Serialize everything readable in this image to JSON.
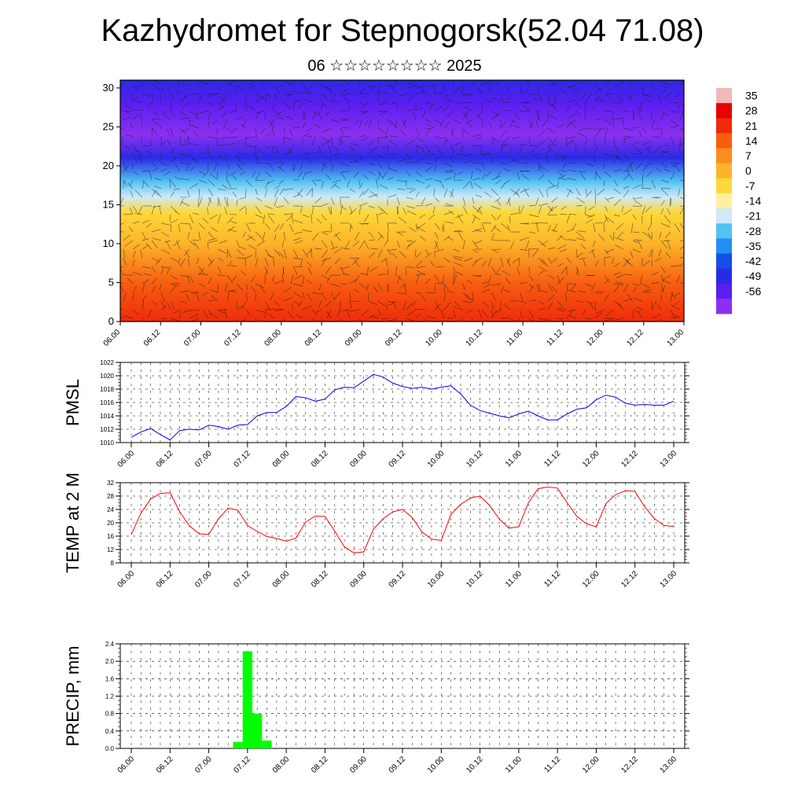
{
  "header": {
    "title": "Kazhydromet for Stepnogorsk(52.04 71.08)",
    "subtitle": "06 ☆☆☆☆☆☆☆☆ 2025"
  },
  "chart_data": [
    {
      "type": "heatmap",
      "title": "",
      "xlabel": "",
      "ylabel": "",
      "x_tick_labels": [
        "06.00",
        "06.12",
        "07.00",
        "07.12",
        "08.00",
        "08.12",
        "09.00",
        "09.12",
        "10.00",
        "10.12",
        "11.00",
        "11.12",
        "12.00",
        "12.12",
        "13.00"
      ],
      "y_ticks": [
        0,
        5,
        10,
        15,
        20,
        25,
        30
      ],
      "ylim": [
        0,
        31
      ],
      "colorbar_labels": [
        "35",
        "28",
        "21",
        "14",
        "7",
        "0",
        "-7",
        "-14",
        "-21",
        "-28",
        "-35",
        "-42",
        "-49",
        "-56"
      ],
      "colorbar_colors": [
        "#f2b8b8",
        "#e60000",
        "#f02a0a",
        "#f75f10",
        "#fb8c1e",
        "#fdb42a",
        "#fdd83a",
        "#fdf0a0",
        "#cfe9f7",
        "#52c2f2",
        "#1e90f0",
        "#1450e6",
        "#2a2ae6",
        "#5a1ef0",
        "#8c30f0"
      ],
      "profile": [
        {
          "level": 0,
          "value": 25
        },
        {
          "level": 5,
          "value": 18
        },
        {
          "level": 10,
          "value": 5
        },
        {
          "level": 14,
          "value": -6
        },
        {
          "level": 16,
          "value": -14
        },
        {
          "level": 18,
          "value": -26
        },
        {
          "level": 21,
          "value": -42
        },
        {
          "level": 24,
          "value": -56
        },
        {
          "level": 28,
          "value": -50
        },
        {
          "level": 31,
          "value": -46
        }
      ]
    },
    {
      "type": "line",
      "ylabel": "PMSL",
      "ylim": [
        1010,
        1022
      ],
      "y_ticks": [
        1010,
        1012,
        1014,
        1016,
        1018,
        1020,
        1022
      ],
      "color": "#0000ff",
      "x_tick_labels": [
        "06.00",
        "06.12",
        "07.00",
        "07.12",
        "08.00",
        "08.12",
        "09.00",
        "09.12",
        "10.00",
        "10.12",
        "11.00",
        "11.12",
        "12.00",
        "12.12",
        "13.00"
      ],
      "values": [
        1010.8,
        1011.6,
        1012.1,
        1011.2,
        1010.4,
        1011.8,
        1012.0,
        1011.9,
        1012.6,
        1012.4,
        1012.0,
        1012.6,
        1012.7,
        1014.0,
        1014.5,
        1014.5,
        1015.4,
        1016.9,
        1016.7,
        1016.2,
        1016.5,
        1017.9,
        1018.3,
        1018.2,
        1019.2,
        1020.2,
        1019.8,
        1018.9,
        1018.4,
        1018.1,
        1018.3,
        1018.0,
        1018.3,
        1018.5,
        1017.3,
        1015.6,
        1014.8,
        1014.4,
        1014.0,
        1013.7,
        1014.3,
        1014.7,
        1014.0,
        1013.4,
        1013.4,
        1014.3,
        1015.0,
        1015.2,
        1016.4,
        1017.1,
        1016.8,
        1015.9,
        1015.6,
        1015.7,
        1015.6,
        1015.6,
        1016.2
      ]
    },
    {
      "type": "line",
      "ylabel": "TEMP at 2 M",
      "ylim": [
        8,
        32
      ],
      "y_ticks": [
        8,
        12,
        16,
        20,
        24,
        28,
        32
      ],
      "color": "#ff0000",
      "x_tick_labels": [
        "06.00",
        "06.12",
        "07.00",
        "07.12",
        "08.00",
        "08.12",
        "09.00",
        "09.12",
        "10.00",
        "10.12",
        "11.00",
        "11.12",
        "12.00",
        "12.12",
        "13.00"
      ],
      "values": [
        16.5,
        22.9,
        27.1,
        28.8,
        29.0,
        23.3,
        19.1,
        16.7,
        16.5,
        21.2,
        24.4,
        23.8,
        19.2,
        17.4,
        15.9,
        15.3,
        14.5,
        15.4,
        20.2,
        22.0,
        21.9,
        17.5,
        12.8,
        11.0,
        11.3,
        18.1,
        21.2,
        23.3,
        24.0,
        21.6,
        17.3,
        15.1,
        14.7,
        22.5,
        25.5,
        27.4,
        28.0,
        25.2,
        21.1,
        18.4,
        18.8,
        26.0,
        30.2,
        30.7,
        30.4,
        26.0,
        21.9,
        19.7,
        18.8,
        25.8,
        28.4,
        29.6,
        29.4,
        24.8,
        21.3,
        19.2,
        18.9
      ]
    },
    {
      "type": "bar",
      "ylabel": "PRECIP, mm",
      "ylim": [
        0,
        2.4
      ],
      "y_ticks": [
        "0.0",
        "0.4",
        "0.8",
        "1.2",
        "1.6",
        "2.0",
        "2.4"
      ],
      "color": "#00ff00",
      "x_tick_labels": [
        "06.00",
        "06.12",
        "07.00",
        "07.12",
        "08.00",
        "08.12",
        "09.00",
        "09.12",
        "10.00",
        "10.12",
        "11.00",
        "11.12",
        "12.00",
        "12.12",
        "13.00"
      ],
      "bars": [
        {
          "step": 11,
          "value": 0.15
        },
        {
          "step": 12,
          "value": 2.23
        },
        {
          "step": 13,
          "value": 0.8
        },
        {
          "step": 14,
          "value": 0.18
        }
      ]
    }
  ]
}
